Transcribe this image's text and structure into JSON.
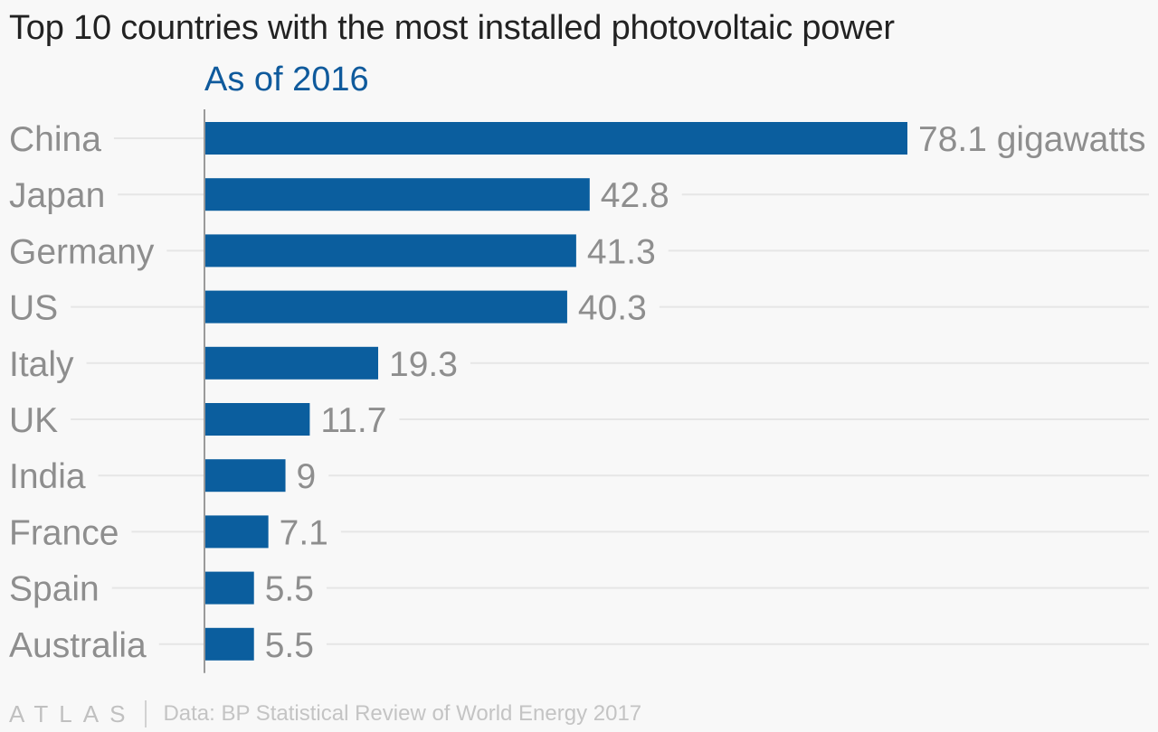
{
  "chart_data": {
    "type": "bar",
    "orientation": "horizontal",
    "title": "Top 10 countries with the most installed photovoltaic power",
    "subtitle": "As of 2016",
    "categories": [
      "China",
      "Japan",
      "Germany",
      "US",
      "Italy",
      "UK",
      "India",
      "France",
      "Spain",
      "Australia"
    ],
    "values": [
      78.1,
      42.8,
      41.3,
      40.3,
      19.3,
      11.7,
      9,
      7.1,
      5.5,
      5.5
    ],
    "value_labels": [
      "78.1 gigawatts",
      "42.8",
      "41.3",
      "40.3",
      "19.3",
      "11.7",
      "9",
      "7.1",
      "5.5",
      "5.5"
    ],
    "unit": "gigawatts",
    "xlim": [
      0,
      78.1
    ],
    "grid": true,
    "legend": "none",
    "colors": {
      "bar": "#0b5e9e",
      "subtitle": "#0f5a9c",
      "labels": "#8e8e8e"
    }
  },
  "footer": {
    "logo": "ATLAS",
    "source": "Data: BP Statistical Review of World Energy 2017"
  }
}
